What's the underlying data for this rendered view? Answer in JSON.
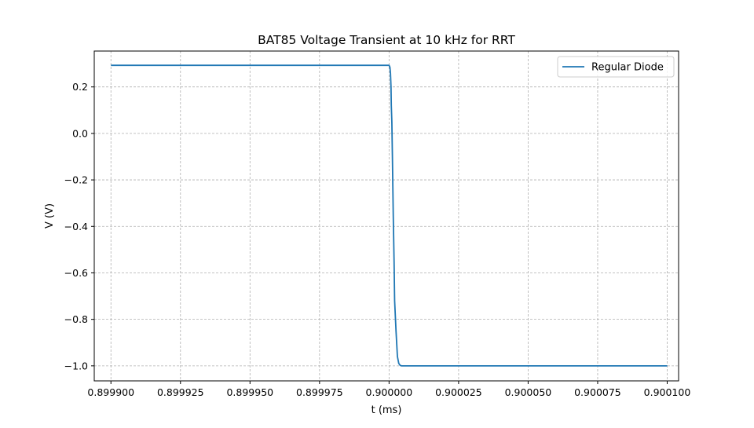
{
  "chart_data": {
    "type": "line",
    "title": "BAT85 Voltage Transient at 10 kHz for RRT",
    "xlabel": "t (ms)",
    "ylabel": "V (V)",
    "xlim": [
      0.899894,
      0.9001041
    ],
    "ylim": [
      -1.0647,
      0.3544
    ],
    "xticks": [
      0.8999,
      0.899925,
      0.89995,
      0.899975,
      0.9,
      0.900025,
      0.90005,
      0.900075,
      0.9001
    ],
    "xtick_labels": [
      "0.899900",
      "0.899925",
      "0.899950",
      "0.899975",
      "0.900000",
      "0.900025",
      "0.900050",
      "0.900075",
      "0.900100"
    ],
    "yticks": [
      0.2,
      0.0,
      -0.2,
      -0.4,
      -0.6,
      -0.8,
      -1.0
    ],
    "ytick_labels": [
      "0.2",
      "0.0",
      "−0.2",
      "−0.4",
      "−0.6",
      "−0.8",
      "−1.0"
    ],
    "grid": true,
    "legend_position": "top-right",
    "series": [
      {
        "name": "Regular Diode",
        "color": "#1f77b4",
        "x": [
          0.8999,
          0.9,
          0.9000003,
          0.9000005,
          0.9000007,
          0.9000008,
          0.900001,
          0.9000012,
          0.9000015,
          0.9000018,
          0.900002,
          0.9000025,
          0.900003,
          0.9000035,
          0.900004,
          0.9000045,
          0.900005,
          0.900006,
          0.9001
        ],
        "y": [
          0.293,
          0.293,
          0.285,
          0.26,
          0.2,
          0.12,
          0.05,
          -0.1,
          -0.35,
          -0.55,
          -0.72,
          -0.85,
          -0.96,
          -0.99,
          -0.998,
          -1.0,
          -1.0,
          -1.0,
          -1.0
        ]
      }
    ]
  }
}
